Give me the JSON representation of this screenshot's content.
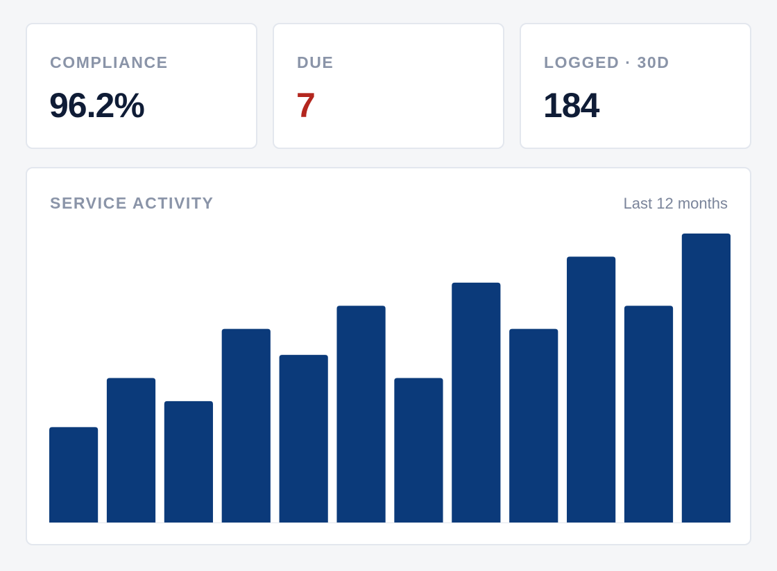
{
  "stats": [
    {
      "label": "COMPLIANCE",
      "value": "96.2%",
      "value_color": "#0f1c36"
    },
    {
      "label": "DUE",
      "value": "7",
      "value_color": "#b3261e"
    },
    {
      "label": "LOGGED · 30D",
      "value": "184",
      "value_color": "#0f1c36"
    }
  ],
  "activity": {
    "title": "SERVICE ACTIVITY",
    "range_label": "Last 12 months"
  },
  "chart_data": {
    "type": "bar",
    "categories": [
      "",
      "",
      "",
      "",
      "",
      "",
      "",
      "",
      "",
      "",
      "",
      ""
    ],
    "values": [
      33,
      50,
      42,
      67,
      58,
      75,
      50,
      83,
      67,
      92,
      75,
      100
    ],
    "ylim": [
      0,
      100
    ],
    "grid": false,
    "bar_color": "#0b3a7a"
  }
}
